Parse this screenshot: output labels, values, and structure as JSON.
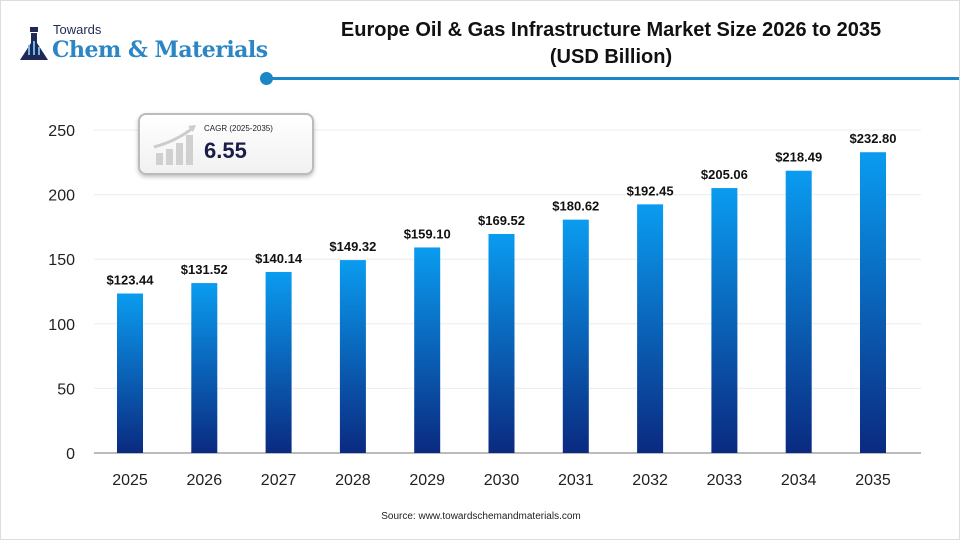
{
  "logo": {
    "line1": "Towards",
    "line2": "Chem & Materials"
  },
  "cagr": {
    "label": "CAGR (2025-2035)",
    "value": "6.55"
  },
  "source": "Source: www.towardschemandmaterials.com",
  "colors": {
    "bar_top": "#0a9cf0",
    "bar_bottom": "#0a2a80",
    "accent": "#1a86c8"
  },
  "chart_data": {
    "type": "bar",
    "title": "Europe Oil & Gas Infrastructure Market Size 2026 to 2035 (USD Billion)",
    "title_lines": [
      "Europe Oil & Gas Infrastructure Market Size 2026 to 2035",
      "(USD Billion)"
    ],
    "categories": [
      "2025",
      "2026",
      "2027",
      "2028",
      "2029",
      "2030",
      "2031",
      "2032",
      "2033",
      "2034",
      "2035"
    ],
    "values": [
      123.44,
      131.52,
      140.14,
      149.32,
      159.1,
      169.52,
      180.62,
      192.45,
      205.06,
      218.49,
      232.8
    ],
    "data_labels": [
      "$123.44",
      "$131.52",
      "$140.14",
      "$149.32",
      "$159.10",
      "$169.52",
      "$180.62",
      "$192.45",
      "$205.06",
      "$218.49",
      "$232.80"
    ],
    "yticks": [
      0,
      50,
      100,
      150,
      200,
      250
    ],
    "ylim": [
      0,
      250
    ],
    "xlabel": "",
    "ylabel": "",
    "grid": true,
    "legend": "none"
  }
}
